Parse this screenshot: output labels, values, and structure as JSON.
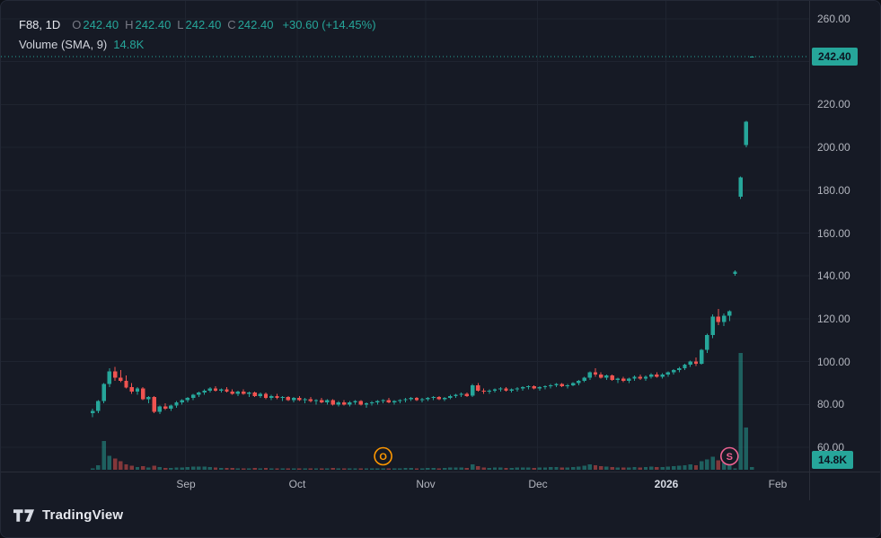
{
  "legend": {
    "symbol": "F88, 1D",
    "ohlc": [
      {
        "label": "O",
        "value": "242.40"
      },
      {
        "label": "H",
        "value": "242.40"
      },
      {
        "label": "L",
        "value": "242.40"
      },
      {
        "label": "C",
        "value": "242.40"
      }
    ],
    "change": "+30.60 (+14.45%)",
    "volume_label": "Volume (SMA, 9)",
    "volume_value": "14.8K"
  },
  "price_axis": {
    "last_price_badge": "242.40",
    "volume_badge": "14.8K",
    "ticks": [
      {
        "price": 260,
        "label": "260.00"
      },
      {
        "price": 220,
        "label": "220.00"
      },
      {
        "price": 200,
        "label": "200.00"
      },
      {
        "price": 180,
        "label": "180.00"
      },
      {
        "price": 160,
        "label": "160.00"
      },
      {
        "price": 140,
        "label": "140.00"
      },
      {
        "price": 120,
        "label": "120.00"
      },
      {
        "price": 100,
        "label": "100.00"
      },
      {
        "price": 80,
        "label": "80.00"
      },
      {
        "price": 60,
        "label": "60.00"
      }
    ]
  },
  "time_axis": {
    "ticks": [
      {
        "label": "Sep",
        "index": 17,
        "emphasis": false
      },
      {
        "label": "Oct",
        "index": 37,
        "emphasis": false
      },
      {
        "label": "Nov",
        "index": 60,
        "emphasis": false
      },
      {
        "label": "Dec",
        "index": 80,
        "emphasis": false
      },
      {
        "label": "2026",
        "index": 103,
        "emphasis": true
      },
      {
        "label": "Feb",
        "index": 123,
        "emphasis": false
      }
    ]
  },
  "footer": {
    "brand": "TradingView"
  },
  "colors": {
    "up": "#26a69a",
    "down": "#ef5350",
    "background": "#161a25",
    "grid": "#1f2430",
    "axis_text": "#b2b5be",
    "price_line": "#26a69a",
    "badge_bg": "#26a69a"
  },
  "chart_data": {
    "type": "candlestick",
    "symbol": "F88",
    "interval": "1D",
    "title": "F88, 1D",
    "last": {
      "open": 242.4,
      "high": 242.4,
      "low": 242.4,
      "close": 242.4,
      "change": 30.6,
      "change_pct": 14.45
    },
    "volume_sma": {
      "period": 9,
      "value_display": "14.8K"
    },
    "y_axis": {
      "visible_range": [
        49,
        268
      ],
      "tick_interval": 20,
      "grid": true
    },
    "x_axis": {
      "tick_labels": [
        "Sep",
        "Oct",
        "Nov",
        "Dec",
        "2026",
        "Feb"
      ],
      "grid": true
    },
    "legend_position": "top-left",
    "last_price": 242.4,
    "grid_prices": [
      260,
      240,
      220,
      200,
      180,
      160,
      140,
      120,
      100,
      80,
      60
    ],
    "markers": [
      {
        "label": "O",
        "index": 52,
        "color": "#ff9800"
      },
      {
        "label": "S",
        "index": 114,
        "color": "#f06292"
      }
    ],
    "candles_format": [
      "open",
      "high",
      "low",
      "close",
      "volume_k"
    ],
    "candles": [
      [
        76,
        78,
        74,
        77,
        2
      ],
      [
        77,
        82,
        76,
        81.5,
        10
      ],
      [
        81.5,
        90,
        80.5,
        89.5,
        62
      ],
      [
        89.5,
        97,
        88,
        95.5,
        30
      ],
      [
        95.5,
        97.5,
        91,
        92.5,
        24
      ],
      [
        92.5,
        96,
        90.5,
        91,
        18
      ],
      [
        91,
        93.5,
        87.5,
        88,
        12
      ],
      [
        88,
        90,
        85,
        86,
        9
      ],
      [
        86,
        88,
        84.5,
        87.5,
        6
      ],
      [
        87.5,
        88,
        82,
        82.5,
        8
      ],
      [
        82.5,
        84,
        80.5,
        83.5,
        5
      ],
      [
        83.5,
        84,
        76,
        76.5,
        9
      ],
      [
        76.5,
        79.5,
        75.5,
        79,
        6
      ],
      [
        79,
        80.5,
        77.5,
        78,
        4
      ],
      [
        78,
        80,
        77,
        79.5,
        4
      ],
      [
        79.5,
        81.5,
        78.5,
        81,
        5
      ],
      [
        81,
        82.5,
        80,
        82,
        5
      ],
      [
        82,
        83.5,
        81,
        83,
        6
      ],
      [
        83,
        85,
        82,
        84.5,
        7
      ],
      [
        84.5,
        86,
        83.5,
        85.5,
        7
      ],
      [
        85.5,
        87,
        84.5,
        86.5,
        7
      ],
      [
        86.5,
        88,
        85.5,
        87.5,
        6
      ],
      [
        87.5,
        88.5,
        86,
        86.5,
        5
      ],
      [
        86.5,
        87.5,
        85.5,
        87,
        4
      ],
      [
        87,
        88,
        85.5,
        86,
        4
      ],
      [
        86,
        87,
        84.5,
        85,
        4
      ],
      [
        85,
        86.5,
        84,
        86,
        3
      ],
      [
        86,
        87,
        84.5,
        85,
        3
      ],
      [
        85,
        86,
        83.5,
        85.5,
        3
      ],
      [
        85.5,
        86,
        83.5,
        84,
        4
      ],
      [
        84,
        85.5,
        83,
        85,
        3
      ],
      [
        85,
        85.5,
        82.5,
        83,
        4
      ],
      [
        83,
        84.5,
        82,
        84,
        3
      ],
      [
        84,
        85,
        82.5,
        83,
        3
      ],
      [
        83,
        84,
        81.5,
        83.5,
        3
      ],
      [
        83.5,
        84,
        81.5,
        82,
        3
      ],
      [
        82,
        83.5,
        81,
        83,
        3
      ],
      [
        83,
        84,
        81.5,
        82,
        3
      ],
      [
        82,
        83,
        80.5,
        82.5,
        3
      ],
      [
        82.5,
        83.5,
        81,
        81.5,
        3
      ],
      [
        81.5,
        82.5,
        80,
        82,
        3
      ],
      [
        82,
        83,
        80.5,
        81,
        3
      ],
      [
        81,
        82.5,
        80,
        82,
        3
      ],
      [
        82,
        82.5,
        79.5,
        80,
        4
      ],
      [
        80,
        81.5,
        79,
        81,
        3
      ],
      [
        81,
        82,
        79.5,
        80,
        3
      ],
      [
        80,
        81.5,
        79,
        81,
        3
      ],
      [
        81,
        82,
        80,
        81.5,
        3
      ],
      [
        81.5,
        82,
        79.5,
        80,
        3
      ],
      [
        80,
        81,
        78.5,
        80.5,
        3
      ],
      [
        80.5,
        81.5,
        79.5,
        81,
        3
      ],
      [
        81,
        82,
        80,
        81.5,
        3
      ],
      [
        81.5,
        82.5,
        80.5,
        82,
        3
      ],
      [
        82,
        83,
        80.5,
        81,
        3
      ],
      [
        81,
        82,
        80,
        81.5,
        3
      ],
      [
        81.5,
        82.5,
        80.5,
        82,
        3
      ],
      [
        82,
        83,
        81,
        82.5,
        4
      ],
      [
        82.5,
        83.5,
        81.5,
        83,
        4
      ],
      [
        83,
        83.5,
        81.5,
        82,
        3
      ],
      [
        82,
        83,
        81,
        82.5,
        3
      ],
      [
        82.5,
        83.5,
        81.5,
        83,
        4
      ],
      [
        83,
        84,
        82,
        83.5,
        4
      ],
      [
        83.5,
        84,
        82,
        82.5,
        3
      ],
      [
        82.5,
        83.5,
        81.5,
        83,
        4
      ],
      [
        83,
        84.5,
        82.5,
        84,
        5
      ],
      [
        84,
        85,
        83,
        84.5,
        5
      ],
      [
        84.5,
        85.5,
        83.5,
        85,
        5
      ],
      [
        85,
        85.5,
        83.5,
        84,
        4
      ],
      [
        84,
        89.5,
        83.5,
        89,
        12
      ],
      [
        89,
        90,
        86,
        86.5,
        8
      ],
      [
        86.5,
        87.5,
        85,
        86,
        5
      ],
      [
        86,
        87,
        85,
        86.5,
        4
      ],
      [
        86.5,
        87.5,
        85.5,
        87,
        5
      ],
      [
        87,
        88,
        86,
        87.5,
        5
      ],
      [
        87.5,
        88,
        86,
        86.5,
        4
      ],
      [
        86.5,
        87.5,
        85.5,
        87,
        4
      ],
      [
        87,
        88,
        86,
        87.5,
        5
      ],
      [
        87.5,
        88.5,
        86.5,
        88,
        5
      ],
      [
        88,
        89,
        87,
        88.5,
        5
      ],
      [
        88.5,
        89,
        87,
        87.5,
        4
      ],
      [
        87.5,
        88.5,
        86.5,
        88,
        5
      ],
      [
        88,
        89,
        87,
        88.5,
        5
      ],
      [
        88.5,
        89.5,
        87.5,
        89,
        6
      ],
      [
        89,
        90,
        88,
        89.5,
        6
      ],
      [
        89.5,
        90,
        88,
        88.5,
        5
      ],
      [
        88.5,
        89.5,
        87.5,
        89,
        5
      ],
      [
        89,
        90.5,
        88.5,
        90,
        6
      ],
      [
        90,
        91.5,
        89,
        91,
        7
      ],
      [
        91,
        93,
        90.5,
        92.5,
        9
      ],
      [
        92.5,
        95.5,
        91.5,
        95,
        12
      ],
      [
        95,
        97,
        93,
        94,
        10
      ],
      [
        94,
        95,
        92,
        92.5,
        8
      ],
      [
        92.5,
        94,
        91.5,
        93.5,
        7
      ],
      [
        93.5,
        94,
        91,
        91.5,
        6
      ],
      [
        91.5,
        92.5,
        90,
        92,
        5
      ],
      [
        92,
        93,
        90.5,
        91,
        5
      ],
      [
        91,
        92.5,
        90,
        92,
        5
      ],
      [
        92,
        93.5,
        91,
        93,
        6
      ],
      [
        93,
        94,
        91.5,
        92,
        5
      ],
      [
        92,
        93.5,
        91,
        93,
        6
      ],
      [
        93,
        94.5,
        92,
        94,
        7
      ],
      [
        94,
        95,
        92.5,
        93,
        6
      ],
      [
        93,
        94.5,
        92,
        94,
        6
      ],
      [
        94,
        95.5,
        93,
        95,
        7
      ],
      [
        95,
        96.5,
        94,
        96,
        8
      ],
      [
        96,
        97.5,
        95,
        97,
        9
      ],
      [
        97,
        99,
        96,
        98.5,
        10
      ],
      [
        98.5,
        100.5,
        97.5,
        100,
        12
      ],
      [
        100,
        102,
        98,
        99,
        10
      ],
      [
        99,
        106,
        98.5,
        105.5,
        18
      ],
      [
        105.5,
        113,
        104,
        112.5,
        22
      ],
      [
        112.5,
        122,
        111,
        121,
        28
      ],
      [
        121,
        124.5,
        117,
        118.5,
        20
      ],
      [
        118.5,
        122.5,
        116.5,
        121.5,
        15
      ],
      [
        121.5,
        124,
        119,
        123.5,
        14
      ],
      [
        141,
        142.5,
        140,
        142,
        3
      ],
      [
        177,
        186.5,
        176,
        186,
        250
      ],
      [
        201,
        212.5,
        200,
        212,
        90
      ],
      [
        242.4,
        242.4,
        242.4,
        242.4,
        6
      ]
    ]
  }
}
